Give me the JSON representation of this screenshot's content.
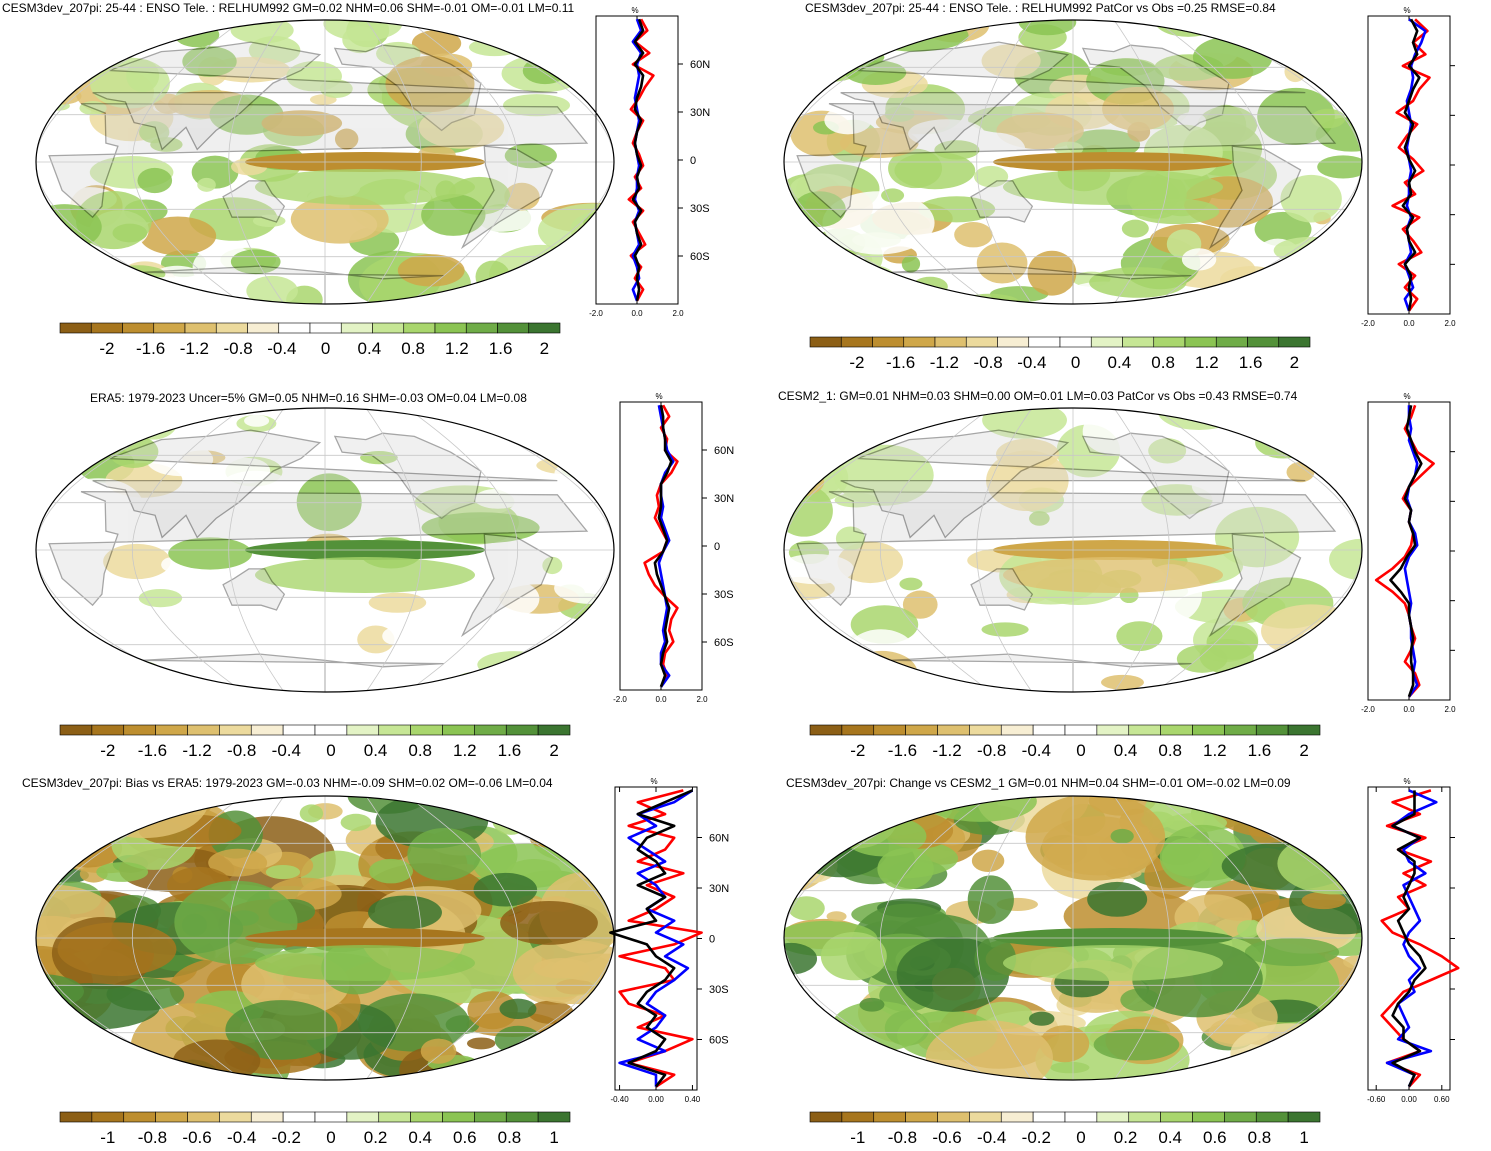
{
  "palettes": {
    "rh": [
      "#8c5f16",
      "#a7761e",
      "#bd8e2f",
      "#cfa749",
      "#dec06f",
      "#ecda9d",
      "#f7eed3",
      "#ffffff",
      "#ffffff",
      "#e3f3c5",
      "#c6e695",
      "#a9d66d",
      "#8bc453",
      "#6fac47",
      "#539139",
      "#3b7530"
    ]
  },
  "panels": [
    {
      "id": "cesm3-tele",
      "title": "CESM3dev_207pi: 25-44 : ENSO Tele. : RELHUM992 GM=0.02 NHM=0.06 SHM=-0.01 OM=-0.01 LM=0.11",
      "map_style": "moderate",
      "zonal": {
        "pct_label": "%",
        "xlim": [
          -2.0,
          2.0
        ],
        "x_ticks": [
          "-2.0",
          "0.0",
          "2.0"
        ],
        "lat_ticks": [
          "60N",
          "30N",
          "0",
          "30S",
          "60S"
        ],
        "series": [
          {
            "color": "#ff0000",
            "values": [
              0.2,
              0.5,
              -0.1,
              0.6,
              -0.2,
              0.8,
              0.4,
              0.1,
              -0.3,
              0.3,
              0.0,
              -0.2,
              0.1,
              0.3,
              -0.1,
              0.2,
              -0.4,
              0.3,
              -0.2,
              0.1,
              0.4,
              -0.3,
              0.2,
              -0.1,
              0.3,
              0.0
            ]
          },
          {
            "color": "#0000ff",
            "values": [
              0.0,
              0.2,
              -0.2,
              0.2,
              0.0,
              0.1,
              0.0,
              -0.1,
              0.0,
              0.1,
              0.0,
              -0.1,
              0.0,
              0.1,
              0.0,
              0.0,
              -0.1,
              0.1,
              -0.1,
              0.0,
              0.1,
              -0.2,
              0.0,
              0.1,
              -0.2,
              0.0
            ]
          },
          {
            "color": "#000000",
            "values": [
              0.1,
              0.3,
              -0.1,
              0.3,
              -0.1,
              0.3,
              0.2,
              0.0,
              -0.1,
              0.2,
              0.0,
              -0.1,
              0.0,
              0.2,
              0.0,
              0.1,
              -0.2,
              0.2,
              -0.1,
              0.0,
              0.2,
              -0.1,
              0.1,
              0.0,
              0.1,
              0.0
            ]
          }
        ]
      },
      "colorbar": {
        "labels": [
          "-2",
          "-1.6",
          "-1.2",
          "-0.8",
          "-0.4",
          "0",
          "0.4",
          "0.8",
          "1.2",
          "1.6",
          "2"
        ]
      }
    },
    {
      "id": "cesm3-patcor",
      "title": "CESM3dev_207pi: 25-44 : ENSO Tele. : RELHUM992 PatCor vs Obs =0.25 RMSE=0.84",
      "map_style": "moderate",
      "zonal": {
        "pct_label": "%",
        "xlim": [
          -2.0,
          2.0
        ],
        "x_ticks": [
          "-2.0",
          "0.0",
          "2.0"
        ],
        "lat_ticks": [
          "",
          "",
          "",
          "",
          ""
        ],
        "series": [
          {
            "color": "#ff0000",
            "values": [
              0.3,
              0.9,
              0.2,
              0.8,
              -0.3,
              1.0,
              0.5,
              0.2,
              -0.6,
              0.4,
              -0.1,
              -0.5,
              0.2,
              0.7,
              -0.2,
              0.3,
              -0.8,
              0.5,
              -0.3,
              0.2,
              0.6,
              -0.5,
              0.3,
              -0.2,
              0.4,
              0.0
            ]
          },
          {
            "color": "#0000ff",
            "values": [
              0.0,
              0.8,
              0.6,
              0.3,
              0.1,
              0.2,
              0.1,
              -0.1,
              0.0,
              0.1,
              0.0,
              -0.1,
              0.0,
              0.1,
              0.0,
              0.0,
              -0.1,
              0.1,
              -0.1,
              0.0,
              0.1,
              -0.2,
              0.0,
              0.2,
              -0.2,
              0.0
            ]
          },
          {
            "color": "#000000",
            "values": [
              0.1,
              0.4,
              0.2,
              0.4,
              0.0,
              0.5,
              0.2,
              0.0,
              -0.2,
              0.2,
              0.0,
              -0.2,
              0.0,
              0.3,
              0.0,
              0.1,
              -0.3,
              0.2,
              -0.1,
              0.0,
              0.3,
              -0.2,
              0.1,
              0.0,
              0.1,
              0.0
            ]
          }
        ]
      },
      "colorbar": {
        "labels": [
          "-2",
          "-1.6",
          "-1.2",
          "-0.8",
          "-0.4",
          "0",
          "0.4",
          "0.8",
          "1.2",
          "1.6",
          "2"
        ]
      }
    },
    {
      "id": "era5",
      "title": "ERA5: 1979-2023 Uncer=5% GM=0.05 NHM=0.16 SHM=-0.03 OM=0.04 LM=0.08",
      "map_style": "obs",
      "zonal": {
        "pct_label": "%",
        "xlim": [
          -2.0,
          2.0
        ],
        "x_ticks": [
          "-2.0",
          "0.0",
          "2.0"
        ],
        "lat_ticks": [
          "60N",
          "30N",
          "0",
          "30S",
          "60S"
        ],
        "series": [
          {
            "color": "#ff0000",
            "values": [
              0.1,
              0.4,
              0.0,
              0.3,
              0.2,
              0.8,
              0.5,
              0.0,
              -0.2,
              -0.1,
              -0.3,
              0.0,
              0.3,
              0.1,
              -0.8,
              -0.6,
              -0.3,
              0.2,
              0.8,
              0.5,
              0.4,
              0.6,
              0.2,
              0.1,
              0.3,
              0.0
            ]
          },
          {
            "color": "#0000ff",
            "values": [
              -0.1,
              0.0,
              0.1,
              0.2,
              0.3,
              0.6,
              0.2,
              0.0,
              0.0,
              0.1,
              0.0,
              0.2,
              0.4,
              0.1,
              -0.1,
              0.0,
              0.1,
              0.2,
              0.3,
              0.2,
              0.1,
              0.2,
              0.0,
              0.0,
              0.4,
              0.0
            ]
          },
          {
            "color": "#000000",
            "values": [
              0.0,
              0.1,
              0.1,
              0.2,
              0.2,
              0.5,
              0.3,
              0.0,
              0.0,
              0.0,
              -0.1,
              0.1,
              0.3,
              0.1,
              -0.3,
              -0.2,
              0.0,
              0.2,
              0.4,
              0.3,
              0.2,
              0.3,
              0.1,
              0.0,
              0.2,
              0.0
            ]
          }
        ]
      },
      "colorbar": {
        "labels": [
          "-2",
          "-1.6",
          "-1.2",
          "-0.8",
          "-0.4",
          "0",
          "0.4",
          "0.8",
          "1.2",
          "1.6",
          "2"
        ]
      }
    },
    {
      "id": "cesm2",
      "title": "CESM2_1: GM=0.01 NHM=0.03 SHM=0.00 OM=0.01 LM=0.03 PatCor vs Obs =0.43 RMSE=0.74",
      "map_style": "cesm2",
      "zonal": {
        "pct_label": "%",
        "xlim": [
          -2.0,
          2.0
        ],
        "x_ticks": [
          "-2.0",
          "0.0",
          "2.0"
        ],
        "lat_ticks": [
          "",
          "",
          "",
          "",
          ""
        ],
        "series": [
          {
            "color": "#ff0000",
            "values": [
              0.3,
              0.1,
              -0.2,
              0.1,
              0.4,
              1.2,
              0.6,
              0.0,
              -0.3,
              0.1,
              0.0,
              0.2,
              0.1,
              -0.2,
              -0.8,
              -1.6,
              -0.8,
              -0.2,
              0.0,
              0.1,
              0.3,
              0.1,
              -0.2,
              0.3,
              0.5,
              0.0
            ]
          },
          {
            "color": "#0000ff",
            "values": [
              0.0,
              0.0,
              0.1,
              0.0,
              0.2,
              0.4,
              0.3,
              0.0,
              -0.1,
              0.1,
              0.0,
              0.3,
              0.4,
              0.0,
              -0.2,
              -0.1,
              0.0,
              0.1,
              0.0,
              0.1,
              0.1,
              0.2,
              0.3,
              0.2,
              0.4,
              0.0
            ]
          },
          {
            "color": "#000000",
            "values": [
              0.1,
              0.0,
              -0.1,
              0.1,
              0.3,
              0.6,
              0.3,
              0.0,
              -0.2,
              0.1,
              0.0,
              0.2,
              0.3,
              -0.1,
              -0.4,
              -0.9,
              -0.4,
              0.0,
              0.0,
              0.1,
              0.2,
              0.1,
              0.1,
              0.2,
              0.2,
              0.0
            ]
          }
        ]
      },
      "colorbar": {
        "labels": [
          "-2",
          "-1.6",
          "-1.2",
          "-0.8",
          "-0.4",
          "0",
          "0.4",
          "0.8",
          "1.2",
          "1.6",
          "2"
        ]
      }
    },
    {
      "id": "bias",
      "title": "CESM3dev_207pi: Bias vs ERA5: 1979-2023 GM=-0.03 NHM=-0.09 SHM=0.02 OM=-0.06 LM=0.04",
      "map_style": "bias",
      "zonal": {
        "pct_label": "%",
        "xlim": [
          -0.45,
          0.45
        ],
        "x_ticks": [
          "-0.40",
          "0.00",
          "0.40"
        ],
        "lat_ticks": [
          "60N",
          "30N",
          "0",
          "30S",
          "60S"
        ],
        "series": [
          {
            "color": "#ff0000",
            "values": [
              0.3,
              -0.2,
              0.1,
              -0.3,
              0.2,
              0.1,
              -0.2,
              0.3,
              -0.1,
              0.2,
              0.0,
              -0.3,
              0.5,
              0.2,
              -0.4,
              0.1,
              0.2,
              -0.4,
              -0.3,
              0.1,
              -0.2,
              0.4,
              0.1,
              -0.3,
              0.2,
              0.0
            ]
          },
          {
            "color": "#0000ff",
            "values": [
              0.4,
              0.2,
              -0.2,
              0.0,
              -0.3,
              -0.1,
              0.1,
              -0.2,
              0.0,
              0.1,
              -0.1,
              0.2,
              0.0,
              0.3,
              0.1,
              0.35,
              0.2,
              0.0,
              -0.1,
              0.1,
              0.0,
              -0.2,
              0.1,
              -0.4,
              0.0,
              0.0
            ]
          },
          {
            "color": "#000000",
            "values": [
              0.4,
              0.1,
              -0.2,
              0.2,
              -0.1,
              -0.2,
              0.0,
              0.1,
              -0.2,
              0.1,
              -0.1,
              0.0,
              -0.5,
              -0.1,
              0.0,
              0.2,
              0.1,
              -0.1,
              -0.2,
              0.0,
              -0.1,
              0.1,
              0.0,
              -0.3,
              0.1,
              0.0
            ]
          }
        ]
      },
      "colorbar": {
        "labels": [
          "-1",
          "-0.8",
          "-0.6",
          "-0.4",
          "-0.2",
          "0",
          "0.2",
          "0.4",
          "0.6",
          "0.8",
          "1"
        ]
      }
    },
    {
      "id": "change",
      "title": "CESM3dev_207pi: Change vs CESM2_1 GM=0.01 NHM=0.04 SHM=-0.01 OM=-0.02 LM=0.09",
      "map_style": "change",
      "zonal": {
        "pct_label": "%",
        "xlim": [
          -0.75,
          0.75
        ],
        "x_ticks": [
          "-0.60",
          "0.00",
          "0.60"
        ],
        "lat_ticks": [
          "",
          "",
          "",
          "",
          ""
        ],
        "series": [
          {
            "color": "#ff0000",
            "values": [
              0.4,
              -0.3,
              0.2,
              -0.4,
              0.3,
              -0.2,
              0.4,
              -0.1,
              0.3,
              -0.2,
              0.0,
              -0.5,
              -0.3,
              0.2,
              0.6,
              0.9,
              0.4,
              -0.1,
              -0.3,
              -0.5,
              -0.3,
              -0.1,
              0.2,
              -0.4,
              0.2,
              0.0
            ]
          },
          {
            "color": "#0000ff",
            "values": [
              0.0,
              0.5,
              0.0,
              -0.3,
              0.2,
              -0.1,
              0.0,
              0.3,
              -0.1,
              0.0,
              0.1,
              0.2,
              0.0,
              -0.1,
              0.0,
              0.2,
              0.0,
              0.1,
              -0.2,
              -0.1,
              0.0,
              -0.2,
              0.4,
              -0.4,
              0.1,
              0.0
            ]
          },
          {
            "color": "#000000",
            "values": [
              0.1,
              0.1,
              0.1,
              -0.3,
              0.2,
              -0.2,
              0.1,
              0.1,
              0.0,
              -0.1,
              0.0,
              -0.2,
              -0.1,
              0.0,
              0.2,
              0.3,
              0.1,
              0.0,
              -0.2,
              -0.3,
              -0.1,
              -0.1,
              0.2,
              -0.3,
              0.1,
              0.0
            ]
          }
        ]
      },
      "colorbar": {
        "labels": [
          "-1",
          "-0.8",
          "-0.6",
          "-0.4",
          "-0.2",
          "0",
          "0.2",
          "0.4",
          "0.6",
          "0.8",
          "1"
        ]
      }
    }
  ],
  "chart_data": [
    {
      "type": "heatmap",
      "title": "CESM3dev_207pi: 25-44 : ENSO Tele. : RELHUM992 GM=0.02 NHM=0.06 SHM=-0.01 OM=-0.01 LM=0.11",
      "colorbar_range": [
        -2,
        2
      ],
      "zonal_mean_xlim": [
        -2.0,
        2.0
      ],
      "lat_ticks": [
        "60N",
        "30N",
        "0",
        "30S",
        "60S"
      ]
    },
    {
      "type": "heatmap",
      "title": "CESM3dev_207pi: 25-44 : ENSO Tele. : RELHUM992 PatCor vs Obs =0.25 RMSE=0.84",
      "colorbar_range": [
        -2,
        2
      ],
      "zonal_mean_xlim": [
        -2.0,
        2.0
      ]
    },
    {
      "type": "heatmap",
      "title": "ERA5: 1979-2023 Uncer=5% GM=0.05 NHM=0.16 SHM=-0.03 OM=0.04 LM=0.08",
      "colorbar_range": [
        -2,
        2
      ],
      "zonal_mean_xlim": [
        -2.0,
        2.0
      ],
      "lat_ticks": [
        "60N",
        "30N",
        "0",
        "30S",
        "60S"
      ]
    },
    {
      "type": "heatmap",
      "title": "CESM2_1: GM=0.01 NHM=0.03 SHM=0.00 OM=0.01 LM=0.03 PatCor vs Obs =0.43 RMSE=0.74",
      "colorbar_range": [
        -2,
        2
      ],
      "zonal_mean_xlim": [
        -2.0,
        2.0
      ]
    },
    {
      "type": "heatmap",
      "title": "CESM3dev_207pi: Bias vs ERA5: 1979-2023 GM=-0.03 NHM=-0.09 SHM=0.02 OM=-0.06 LM=0.04",
      "colorbar_range": [
        -1,
        1
      ],
      "zonal_mean_xlim": [
        -0.45,
        0.45
      ],
      "lat_ticks": [
        "60N",
        "30N",
        "0",
        "30S",
        "60S"
      ]
    },
    {
      "type": "heatmap",
      "title": "CESM3dev_207pi: Change vs CESM2_1 GM=0.01 NHM=0.04 SHM=-0.01 OM=-0.02 LM=0.09",
      "colorbar_range": [
        -1,
        1
      ],
      "zonal_mean_xlim": [
        -0.75,
        0.75
      ]
    }
  ]
}
